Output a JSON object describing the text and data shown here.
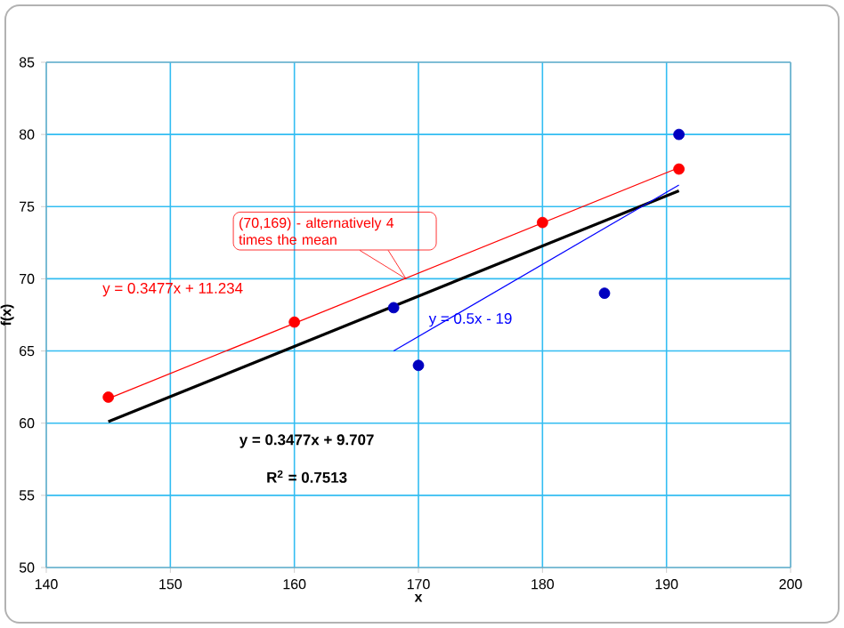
{
  "chart_data": {
    "type": "scatter",
    "xlabel": "x",
    "ylabel": "f(x)",
    "xlim": [
      140,
      200
    ],
    "ylim": [
      50,
      85
    ],
    "xticks": [
      140,
      150,
      160,
      170,
      180,
      190,
      200
    ],
    "yticks": [
      50,
      55,
      60,
      65,
      70,
      75,
      80,
      85
    ],
    "grid": true,
    "marker": "circle",
    "series": [
      {
        "type": "line",
        "color": "#ff0000",
        "x": [
          145,
          191
        ],
        "values": [
          61.7,
          77.7
        ],
        "marker": "none",
        "line_style": "solid"
      },
      {
        "type": "line",
        "color": "#000000",
        "x": [
          145,
          191
        ],
        "values": [
          60.1,
          76.1
        ],
        "marker": "none",
        "line_style": "solid"
      },
      {
        "type": "line",
        "color": "#0000ff",
        "x": [
          168,
          191
        ],
        "values": [
          65,
          76.5
        ],
        "marker": "none",
        "line_style": "solid"
      },
      {
        "color": "#0000c0",
        "x": [
          168,
          170,
          185,
          191
        ],
        "values": [
          68,
          64,
          69,
          80
        ]
      },
      {
        "color": "#ff0000",
        "x": [
          145,
          160,
          180,
          191
        ],
        "values": [
          61.8,
          67,
          73.9,
          77.6
        ]
      }
    ],
    "annotations": [
      {
        "text": "(70,169) - alternatively 4 times the mean",
        "x": 169,
        "y": 70
      },
      "y = 0.3477x + 11.234",
      "y = 0.3477x + 9.707",
      "R$^{2}$ = 0.7513",
      "y = 0.5x - 19"
    ]
  }
}
